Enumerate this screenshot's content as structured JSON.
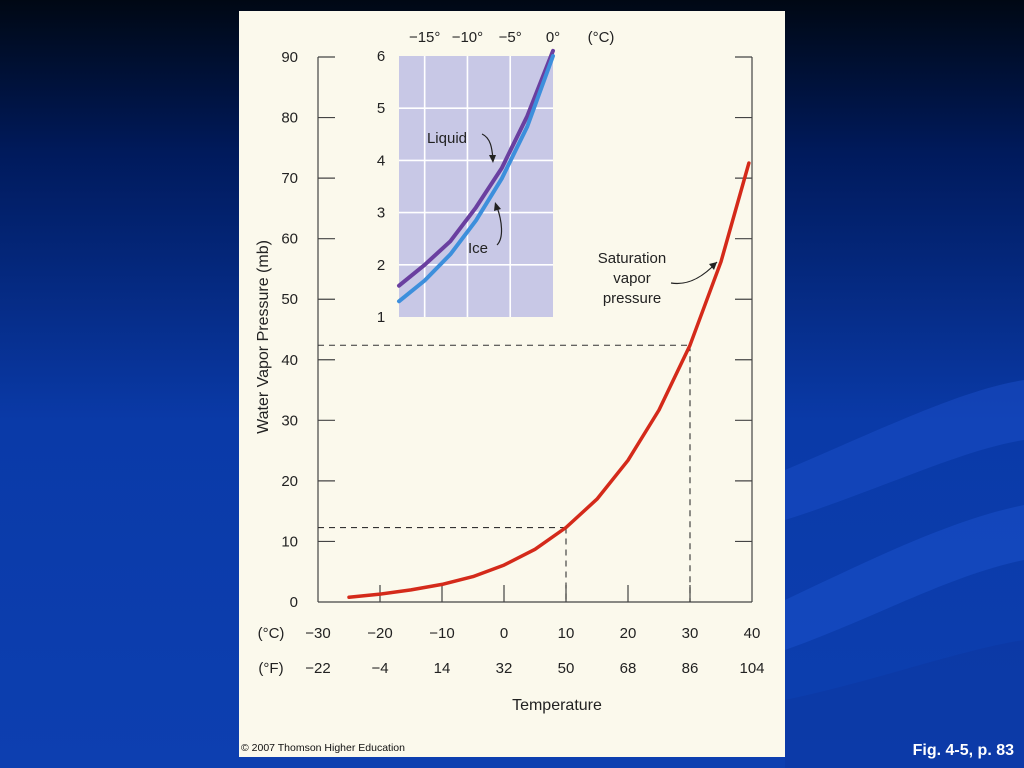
{
  "slide": {
    "caption": "Fig. 4-5, p. 83",
    "copyright": "© 2007 Thomson Higher Education"
  },
  "chart_data": [
    {
      "type": "line",
      "ylabel": "Water Vapor Pressure (mb)",
      "xlabel": "Temperature",
      "x_unit_c": "(°C)",
      "x_unit_f": "(°F)",
      "xlim": [
        -30,
        40
      ],
      "ylim": [
        0,
        90
      ],
      "x_ticks_c": [
        "−30",
        "−20",
        "−10",
        "0",
        "10",
        "20",
        "30",
        "40"
      ],
      "x_ticks_f": [
        "−22",
        "−4",
        "14",
        "32",
        "50",
        "68",
        "86",
        "104"
      ],
      "y_ticks": [
        "0",
        "10",
        "20",
        "30",
        "40",
        "50",
        "60",
        "70",
        "80",
        "90"
      ],
      "annotation": [
        "Saturation",
        "vapor",
        "pressure"
      ],
      "reference_points": [
        {
          "x": 10,
          "y": 12.3
        },
        {
          "x": 30,
          "y": 42.4
        }
      ],
      "series": [
        {
          "name": "Saturation vapor pressure",
          "color": "#d42a1a",
          "x": [
            -25,
            -20,
            -15,
            -10,
            -5,
            0,
            5,
            10,
            15,
            20,
            25,
            30,
            35,
            39.5
          ],
          "y": [
            0.8,
            1.3,
            2.0,
            2.9,
            4.2,
            6.1,
            8.7,
            12.3,
            17.0,
            23.4,
            31.7,
            42.4,
            56.2,
            72.5
          ]
        }
      ]
    },
    {
      "type": "line",
      "x_unit": "(°C)",
      "xlim": [
        -18,
        0
      ],
      "ylim": [
        1,
        6
      ],
      "x_ticks": [
        "−15°",
        "−10°",
        "−5°",
        "0°"
      ],
      "y_ticks": [
        "1",
        "2",
        "3",
        "4",
        "5",
        "6"
      ],
      "grid": true,
      "background": "#c8c8e6",
      "series": [
        {
          "name": "Liquid",
          "color": "#6a3fa0",
          "x": [
            -18,
            -15,
            -12,
            -9,
            -6,
            -3,
            0
          ],
          "y": [
            1.6,
            2.0,
            2.45,
            3.1,
            3.85,
            4.85,
            6.1
          ]
        },
        {
          "name": "Ice",
          "color": "#3d8fdc",
          "x": [
            -18,
            -15,
            -12,
            -9,
            -6,
            -3,
            0
          ],
          "y": [
            1.3,
            1.7,
            2.2,
            2.85,
            3.65,
            4.65,
            6.0
          ]
        }
      ]
    }
  ]
}
